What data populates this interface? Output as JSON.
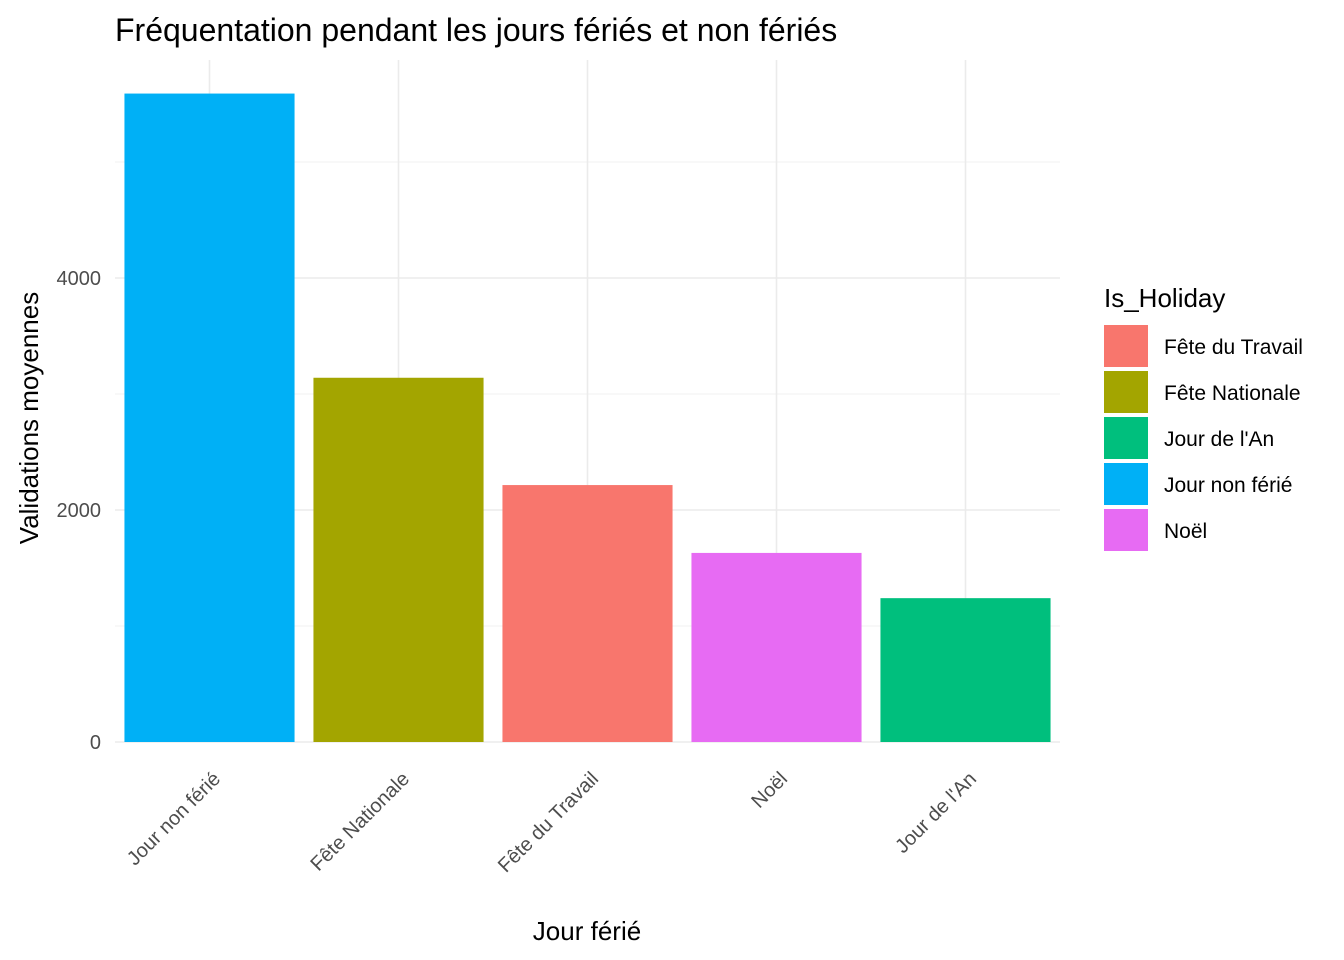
{
  "chart_data": {
    "type": "bar",
    "title": "Fréquentation pendant les jours fériés et non fériés",
    "xlabel": "Jour férié",
    "ylabel": "Validations moyennes",
    "categories": [
      "Jour non férié",
      "Fête Nationale",
      "Fête du Travail",
      "Noël",
      "Jour de l'An"
    ],
    "values": [
      5590,
      3140,
      2215,
      1630,
      1240
    ],
    "bar_colors": [
      "#00B0F6",
      "#A3A500",
      "#F8766D",
      "#E76BF3",
      "#00BF7D"
    ],
    "ylim": [
      0,
      5800
    ],
    "y_ticks": [
      0,
      2000,
      4000
    ],
    "y_tick_labels": [
      "0",
      "2000",
      "4000"
    ],
    "grid": true,
    "legend": {
      "title": "Is_Holiday",
      "placement": "right",
      "entries": [
        {
          "label": "Fête du Travail",
          "color": "#F8766D"
        },
        {
          "label": "Fête Nationale",
          "color": "#A3A500"
        },
        {
          "label": "Jour de l'An",
          "color": "#00BF7D"
        },
        {
          "label": "Jour non férié",
          "color": "#00B0F6"
        },
        {
          "label": "Noël",
          "color": "#E76BF3"
        }
      ]
    }
  }
}
